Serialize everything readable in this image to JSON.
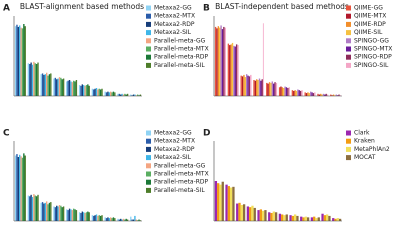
{
  "chart_data": [
    {
      "type": "bar",
      "panel_label": "A",
      "title": "BLAST-alignment based methods",
      "legend": "right",
      "ylim": [
        0,
        110
      ],
      "categories": [
        null,
        null,
        null,
        null,
        null,
        null,
        null,
        null,
        null,
        null
      ],
      "series": [
        {
          "name": "Metaxa2-GG",
          "color": "#8fd3f4",
          "values": [
            96,
            45,
            30,
            24,
            20,
            15,
            10,
            6,
            3,
            2
          ]
        },
        {
          "name": "Metaxa2-MTX",
          "color": "#2a5caa",
          "values": [
            98,
            44,
            31,
            25,
            21,
            14,
            9,
            5,
            3,
            1
          ]
        },
        {
          "name": "Metaxa2-RDP",
          "color": "#163d7a",
          "values": [
            95,
            46,
            29,
            23,
            22,
            16,
            10,
            6,
            2,
            2
          ]
        },
        {
          "name": "Metaxa2-SIL",
          "color": "#3fb6e8",
          "values": [
            97,
            43,
            30,
            24,
            20,
            15,
            11,
            5,
            3,
            2
          ]
        },
        {
          "name": "Parallel-meta-GG",
          "color": "#f4a582",
          "values": [
            94,
            47,
            32,
            26,
            19,
            14,
            9,
            6,
            2,
            1
          ]
        },
        {
          "name": "Parallel-meta-MTX",
          "color": "#5aae61",
          "values": [
            93,
            45,
            28,
            25,
            21,
            15,
            10,
            5,
            3,
            2
          ]
        },
        {
          "name": "Parallel-meta-RDP",
          "color": "#1b7837",
          "values": [
            99,
            44,
            30,
            23,
            20,
            16,
            9,
            6,
            2,
            1
          ]
        },
        {
          "name": "Parallel-meta-SIL",
          "color": "#4d7d2a",
          "values": [
            96,
            46,
            31,
            24,
            22,
            14,
            10,
            5,
            3,
            2
          ]
        }
      ]
    },
    {
      "type": "bar",
      "panel_label": "B",
      "title": "BLAST-independent based methods",
      "legend": "right",
      "ylim": [
        0,
        110
      ],
      "categories": [
        null,
        null,
        null,
        null,
        null,
        null,
        null,
        null,
        null,
        null
      ],
      "series": [
        {
          "name": "QIIME-GG",
          "color": "#e8553e",
          "values": [
            95,
            72,
            28,
            22,
            18,
            12,
            8,
            5,
            3,
            2
          ]
        },
        {
          "name": "QIIME-MTX",
          "color": "#b2182b",
          "values": [
            93,
            70,
            27,
            21,
            17,
            13,
            7,
            4,
            2,
            1
          ]
        },
        {
          "name": "QIIME-RDP",
          "color": "#f28e2b",
          "values": [
            96,
            71,
            29,
            23,
            19,
            12,
            8,
            5,
            3,
            2
          ]
        },
        {
          "name": "QIIME-SIL",
          "color": "#f6c141",
          "values": [
            94,
            73,
            26,
            22,
            18,
            11,
            7,
            4,
            2,
            1
          ]
        },
        {
          "name": "SPINGO-GG",
          "color": "#b07cc6",
          "values": [
            97,
            69,
            30,
            24,
            20,
            13,
            9,
            6,
            3,
            2
          ]
        },
        {
          "name": "SPINGO-MTX",
          "color": "#6a1b9a",
          "values": [
            92,
            68,
            28,
            21,
            17,
            12,
            8,
            5,
            2,
            1
          ]
        },
        {
          "name": "SPINGO-RDP",
          "color": "#8e2c5a",
          "values": [
            95,
            71,
            27,
            23,
            19,
            11,
            7,
            4,
            3,
            2
          ]
        },
        {
          "name": "SPINGO-SIL",
          "color": "#f4a6c6",
          "values": [
            94,
            70,
            29,
            100,
            18,
            12,
            8,
            5,
            2,
            1
          ]
        }
      ]
    },
    {
      "type": "bar",
      "panel_label": "C",
      "legend": "right",
      "ylim": [
        0,
        110
      ],
      "categories": [
        null,
        null,
        null,
        null,
        null,
        null,
        null,
        null,
        null,
        null
      ],
      "series": [
        {
          "name": "Metaxa2-GG",
          "color": "#8fd3f4",
          "values": [
            90,
            35,
            25,
            20,
            16,
            12,
            8,
            5,
            3,
            6
          ]
        },
        {
          "name": "Metaxa2-MTX",
          "color": "#2a5caa",
          "values": [
            92,
            34,
            26,
            19,
            15,
            11,
            7,
            4,
            2,
            2
          ]
        },
        {
          "name": "Metaxa2-RDP",
          "color": "#163d7a",
          "values": [
            88,
            36,
            24,
            21,
            17,
            13,
            8,
            5,
            3,
            2
          ]
        },
        {
          "name": "Metaxa2-SIL",
          "color": "#3fb6e8",
          "values": [
            91,
            33,
            25,
            20,
            16,
            12,
            9,
            4,
            2,
            7
          ]
        },
        {
          "name": "Parallel-meta-GG",
          "color": "#f4a582",
          "values": [
            89,
            37,
            27,
            22,
            15,
            11,
            7,
            5,
            3,
            2
          ]
        },
        {
          "name": "Parallel-meta-MTX",
          "color": "#5aae61",
          "values": [
            87,
            35,
            23,
            21,
            17,
            12,
            8,
            4,
            2,
            1
          ]
        },
        {
          "name": "Parallel-meta-RDP",
          "color": "#1b7837",
          "values": [
            93,
            34,
            25,
            19,
            16,
            13,
            7,
            5,
            3,
            2
          ]
        },
        {
          "name": "Parallel-meta-SIL",
          "color": "#4d7d2a",
          "values": [
            90,
            36,
            26,
            20,
            15,
            12,
            8,
            4,
            2,
            1
          ]
        }
      ]
    },
    {
      "type": "bar",
      "panel_label": "D",
      "legend": "right",
      "ylim": [
        0,
        110
      ],
      "categories": [
        null,
        null,
        null,
        null,
        null,
        null,
        null,
        null,
        null,
        null,
        null,
        null
      ],
      "series": [
        {
          "name": "Clark",
          "color": "#9c27b0",
          "values": [
            55,
            50,
            24,
            20,
            15,
            12,
            10,
            8,
            6,
            5,
            10,
            4
          ]
        },
        {
          "name": "Kraken",
          "color": "#f39c12",
          "values": [
            52,
            48,
            25,
            19,
            16,
            11,
            9,
            7,
            5,
            6,
            8,
            3
          ]
        },
        {
          "name": "MetaPhlAn2",
          "color": "#f1e05a",
          "values": [
            50,
            46,
            22,
            21,
            14,
            13,
            8,
            9,
            6,
            4,
            9,
            4
          ]
        },
        {
          "name": "MOCAT",
          "color": "#8d6e3f",
          "values": [
            54,
            47,
            23,
            18,
            15,
            12,
            9,
            7,
            5,
            5,
            7,
            3
          ]
        }
      ]
    }
  ]
}
